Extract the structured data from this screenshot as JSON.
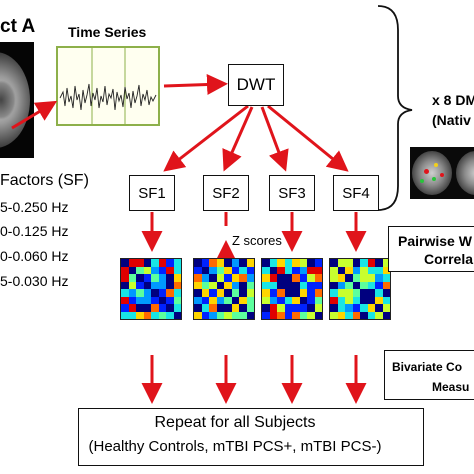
{
  "subject_title": "ct A",
  "time_series_label": "Time Series",
  "dwt_label": "DWT",
  "sf_header": "Factors (SF)",
  "sf_ranges": [
    "5-0.250 Hz",
    "0-0.125 Hz",
    "0-0.060 Hz",
    "5-0.030 Hz"
  ],
  "sf_boxes": [
    "SF1",
    "SF2",
    "SF3",
    "SF4"
  ],
  "z_scores": "Z scores",
  "dmn_title": "x 8 DM",
  "dmn_native": "(Nativ",
  "pairwise_line1": "Pairwise W",
  "pairwise_line2": "Correla",
  "bivariate_line1": "Bivariate Co",
  "bivariate_line2": "Measu",
  "repeat_line1": "Repeat for all Subjects",
  "repeat_line2": "(Healthy Controls, mTBI PCS+, mTBI PCS-)",
  "colors": {
    "arrow": "#e0141b",
    "line": "#111111",
    "screen": "#fffff0"
  }
}
